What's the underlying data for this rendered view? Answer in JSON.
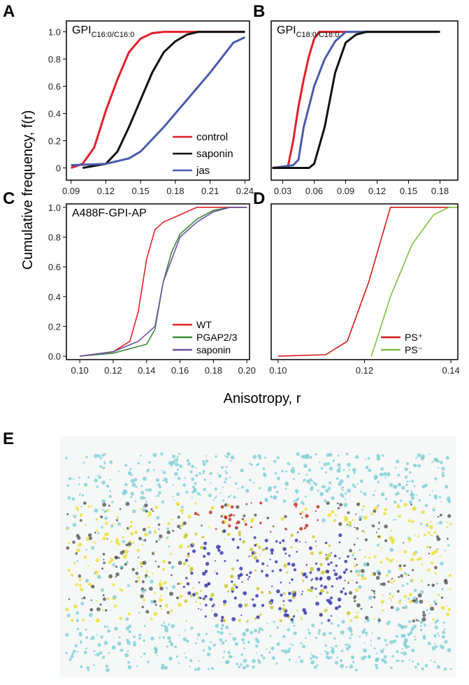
{
  "panel_labels": [
    "A",
    "B",
    "C",
    "D",
    "E"
  ],
  "y_label": "Cumulative frequency, f(r)",
  "x_label": "Anisotropy, r",
  "chart_data": [
    {
      "type": "line",
      "title": "GPI",
      "title_subscript": "C16:0/C16:0",
      "xlim": [
        0.086,
        0.244
      ],
      "ylim": [
        -0.09,
        1.08
      ],
      "xticks": [
        0.09,
        0.12,
        0.15,
        0.18,
        0.21,
        0.24
      ],
      "yticks": [
        0,
        0.2,
        0.4,
        0.6,
        0.8,
        {
          "value": 1,
          "label": "1.0"
        }
      ],
      "legend": "lower right",
      "series": [
        {
          "name": "control",
          "color": "#e0202a",
          "x": [
            0.09,
            0.1,
            0.11,
            0.12,
            0.13,
            0.14,
            0.15,
            0.16,
            0.17,
            0.24
          ],
          "values": [
            0.0,
            0.03,
            0.15,
            0.42,
            0.65,
            0.85,
            0.95,
            0.99,
            1.0,
            1.0
          ]
        },
        {
          "name": "saponin",
          "color": "#111111",
          "x": [
            0.1,
            0.12,
            0.13,
            0.14,
            0.15,
            0.16,
            0.17,
            0.18,
            0.19,
            0.2,
            0.24
          ],
          "values": [
            0.0,
            0.03,
            0.12,
            0.3,
            0.5,
            0.7,
            0.85,
            0.93,
            0.98,
            1.0,
            1.0
          ]
        },
        {
          "name": "jas",
          "color": "#4a5aaa",
          "x": [
            0.09,
            0.12,
            0.14,
            0.15,
            0.17,
            0.19,
            0.21,
            0.23,
            0.24
          ],
          "values": [
            0.02,
            0.03,
            0.07,
            0.12,
            0.3,
            0.5,
            0.7,
            0.92,
            0.96
          ]
        }
      ]
    },
    {
      "type": "line",
      "title": "GPI",
      "title_subscript": "C18:0/C18:0",
      "xlim": [
        0.019,
        0.197
      ],
      "ylim": [
        -0.09,
        1.08
      ],
      "xticks": [
        0.03,
        0.06,
        0.09,
        0.12,
        0.15,
        0.18
      ],
      "series": [
        {
          "color": "#e0202a",
          "x": [
            0.02,
            0.035,
            0.04,
            0.045,
            0.05,
            0.055,
            0.06,
            0.065,
            0.18
          ],
          "values": [
            0.0,
            0.01,
            0.2,
            0.45,
            0.65,
            0.82,
            0.95,
            1.0,
            1.0
          ]
        },
        {
          "color": "#4a5aaa",
          "x": [
            0.02,
            0.04,
            0.045,
            0.05,
            0.06,
            0.07,
            0.08,
            0.09,
            0.18
          ],
          "values": [
            0.0,
            0.02,
            0.06,
            0.3,
            0.6,
            0.8,
            0.93,
            1.0,
            1.0
          ]
        },
        {
          "color": "#111111",
          "x": [
            0.02,
            0.055,
            0.06,
            0.07,
            0.08,
            0.09,
            0.1,
            0.11,
            0.18
          ],
          "values": [
            0.0,
            0.0,
            0.03,
            0.3,
            0.7,
            0.92,
            0.98,
            1.0,
            1.0
          ]
        }
      ]
    },
    {
      "type": "line",
      "title": "A488F-GPI-AP",
      "xlim": [
        0.092,
        0.2016
      ],
      "ylim": [
        -0.023,
        1.023
      ],
      "xticks": [
        {
          "value": 0.1,
          "label": "0.10"
        },
        0.12,
        0.14,
        0.16,
        0.18,
        {
          "value": 0.2,
          "label": "0.20"
        }
      ],
      "yticks": [
        {
          "value": 0,
          "label": "0.0"
        },
        0.2,
        0.4,
        0.6,
        0.8,
        {
          "value": 1,
          "label": "1.0"
        }
      ],
      "legend": "lower right",
      "series": [
        {
          "name": "WT",
          "color": "#e0202a",
          "x": [
            0.1,
            0.12,
            0.13,
            0.135,
            0.14,
            0.145,
            0.15,
            0.16,
            0.17,
            0.2
          ],
          "values": [
            0.0,
            0.03,
            0.1,
            0.3,
            0.65,
            0.85,
            0.9,
            0.95,
            1.0,
            1.0
          ]
        },
        {
          "name": "PGAP2/3",
          "color": "#3a8a3a",
          "x": [
            0.1,
            0.12,
            0.14,
            0.145,
            0.15,
            0.155,
            0.16,
            0.17,
            0.18,
            0.19,
            0.2
          ],
          "values": [
            0.0,
            0.02,
            0.08,
            0.18,
            0.5,
            0.7,
            0.82,
            0.92,
            0.98,
            1.0,
            1.0
          ]
        },
        {
          "name": "saponin",
          "color": "#7050a0",
          "x": [
            0.1,
            0.12,
            0.135,
            0.145,
            0.15,
            0.16,
            0.17,
            0.18,
            0.19,
            0.2
          ],
          "values": [
            0.0,
            0.03,
            0.1,
            0.2,
            0.5,
            0.8,
            0.9,
            0.97,
            1.0,
            1.0
          ]
        }
      ]
    },
    {
      "type": "line",
      "xlim": [
        0.0984,
        0.1416
      ],
      "ylim": [
        -0.023,
        1.023
      ],
      "xticks": [
        {
          "value": 0.1,
          "label": "0.10"
        },
        0.12,
        0.14
      ],
      "legend": "lower right",
      "series": [
        {
          "name": "PS⁺",
          "color": "#d01818",
          "x": [
            0.1,
            0.111,
            0.116,
            0.121,
            0.126,
            0.14
          ],
          "values": [
            0.0,
            0.01,
            0.1,
            0.5,
            1.0,
            1.0
          ]
        },
        {
          "name": "PS⁻",
          "color": "#80c040",
          "x": [
            0.1216,
            0.126,
            0.131,
            0.136,
            0.1395,
            0.1416
          ],
          "values": [
            0.0,
            0.4,
            0.75,
            0.95,
            1.0,
            1.0
          ]
        }
      ]
    }
  ]
}
